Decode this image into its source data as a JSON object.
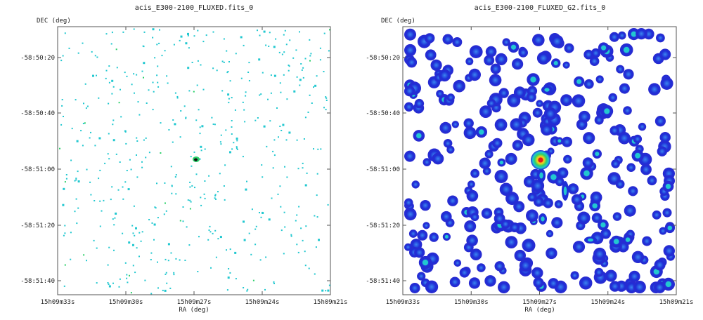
{
  "chart_data": [
    {
      "type": "heatmap",
      "title": "acis_E300-2100_FLUXED.fits_0",
      "xlabel": "RA (deg)",
      "ylabel": "DEC (deg)",
      "x_ticks": [
        "15h09m33s",
        "15h09m30s",
        "15h09m27s",
        "15h09m24s",
        "15h09m21s"
      ],
      "y_ticks": [
        "-58:50:20",
        "-58:50:40",
        "-58:51:00",
        "-58:51:20",
        "-58:51:40"
      ],
      "colors": {
        "low": "#ffffff",
        "count": "#22c8d0",
        "mid": "#2bd06a",
        "peak": "#e01818"
      },
      "sources": [
        {
          "ra_s": 27.3,
          "dec_s": -58.5,
          "level": "peak"
        }
      ],
      "grid": false
    },
    {
      "type": "heatmap",
      "title": "acis_E300-2100_FLUXED_G2.fits_0",
      "xlabel": "RA (deg)",
      "ylabel": "DEC (deg)",
      "x_ticks": [
        "15h09m33s",
        "15h09m30s",
        "15h09m27s",
        "15h09m24s",
        "15h09m21s"
      ],
      "y_ticks": [
        "-58:50:20",
        "-58:50:40",
        "-58:51:00",
        "-58:51:20",
        "-58:51:40"
      ],
      "colors": {
        "low": "#ffffff",
        "blob": "#1f2fd6",
        "mid": "#22c8d0",
        "peak": "#e01818"
      },
      "sources": [
        {
          "ra_s": 27.3,
          "dec_s": -58.5,
          "level": "peak"
        }
      ],
      "grid": false
    }
  ]
}
